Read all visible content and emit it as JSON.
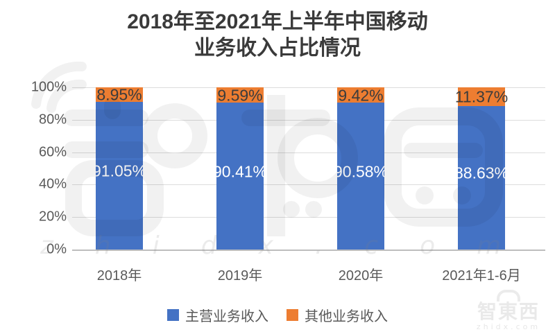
{
  "title": {
    "line1": "2018年至2021年上半年中国移动",
    "line2": "业务收入占比情况"
  },
  "chart_data": {
    "type": "bar",
    "stacked": true,
    "orientation": "vertical",
    "categories": [
      "2018年",
      "2019年",
      "2020年",
      "2021年1-6月"
    ],
    "series": [
      {
        "name": "主营业务收入",
        "color": "#4472C4",
        "label_color": "#ffffff",
        "values": [
          91.05,
          90.41,
          90.58,
          88.63
        ]
      },
      {
        "name": "其他业务收入",
        "color": "#ED7D31",
        "label_color": "#3c3c3c",
        "values": [
          8.95,
          9.59,
          9.42,
          11.37
        ]
      }
    ],
    "value_suffix": "%",
    "y_ticks_top_to_bottom": [
      "100%",
      "80%",
      "60%",
      "40%",
      "20%",
      "0%"
    ],
    "ylim": [
      0,
      100
    ],
    "grid": true,
    "legend_position": "bottom"
  },
  "watermark": {
    "brand_text": "智東西",
    "domain_text": "zhidx.com"
  },
  "colors": {
    "main_blue": "#4472C4",
    "other_orange": "#ED7D31",
    "title_text": "#3a3a3a",
    "axis_text": "#595959",
    "gridline": "#dcdcdc",
    "axis_line": "#bdbdbd",
    "background": "#ffffff"
  }
}
